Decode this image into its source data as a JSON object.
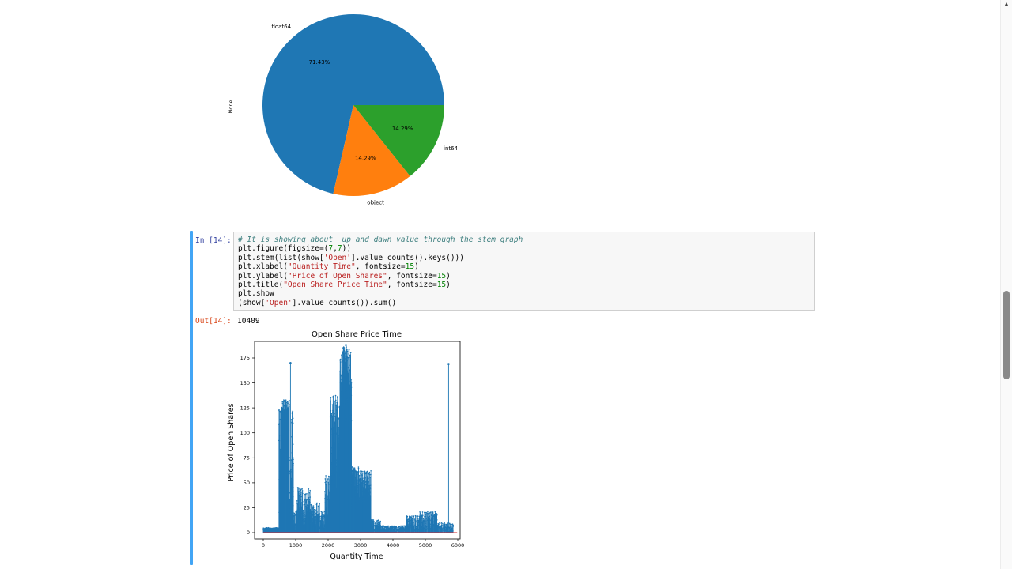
{
  "notebook": {
    "cell": {
      "prompt_in": "In [14]:",
      "prompt_out": "Out[14]:",
      "output_value": "10409"
    },
    "colors": {
      "selection_bar": "#42a5f5",
      "in_prompt": "#303f9f",
      "out_prompt": "#d84315",
      "comment": "#408080",
      "string": "#ba2121",
      "number": "#008000",
      "stem_blue": "#1f77b4",
      "baseline_red": "#d62728"
    },
    "scrollbar": {
      "up_arrow": "▲"
    }
  },
  "code_lines": [
    [
      {
        "t": "cm",
        "v": "# It is showing about  up and dawn value through the stem graph"
      }
    ],
    [
      {
        "t": "pl",
        "v": "plt.figure(figsize=("
      },
      {
        "t": "nu",
        "v": "7"
      },
      {
        "t": "pl",
        "v": ","
      },
      {
        "t": "nu",
        "v": "7"
      },
      {
        "t": "pl",
        "v": "))"
      }
    ],
    [
      {
        "t": "pl",
        "v": "plt.stem(list(show["
      },
      {
        "t": "st",
        "v": "'Open'"
      },
      {
        "t": "pl",
        "v": "].value_counts().keys()))"
      }
    ],
    [
      {
        "t": "pl",
        "v": "plt.xlabel("
      },
      {
        "t": "st",
        "v": "\"Quantity Time\""
      },
      {
        "t": "pl",
        "v": ", fontsize="
      },
      {
        "t": "nu",
        "v": "15"
      },
      {
        "t": "pl",
        "v": ")"
      }
    ],
    [
      {
        "t": "pl",
        "v": "plt.ylabel("
      },
      {
        "t": "st",
        "v": "\"Price of Open Shares\""
      },
      {
        "t": "pl",
        "v": ", fontsize="
      },
      {
        "t": "nu",
        "v": "15"
      },
      {
        "t": "pl",
        "v": ")"
      }
    ],
    [
      {
        "t": "pl",
        "v": "plt.title("
      },
      {
        "t": "st",
        "v": "\"Open Share Price Time\""
      },
      {
        "t": "pl",
        "v": ", fontsize="
      },
      {
        "t": "nu",
        "v": "15"
      },
      {
        "t": "pl",
        "v": ")"
      }
    ],
    [
      {
        "t": "pl",
        "v": "plt.show"
      }
    ],
    [
      {
        "t": "pl",
        "v": "(show["
      },
      {
        "t": "st",
        "v": "'Open'"
      },
      {
        "t": "pl",
        "v": "].value_counts()).sum()"
      }
    ]
  ],
  "chart_data": [
    {
      "type": "pie",
      "labels": [
        "float64",
        "object",
        "int64"
      ],
      "values": [
        71.43,
        14.29,
        14.29
      ],
      "pct_labels": [
        "71.43%",
        "14.29%",
        "14.29%"
      ],
      "colors": [
        "#1f77b4",
        "#ff7f0e",
        "#2ca02c"
      ],
      "ylabel": "None",
      "start_angle": 0,
      "counterclock": true,
      "legend": false
    },
    {
      "type": "stem",
      "title": "Open Share Price Time",
      "xlabel": "Quantity Time",
      "ylabel": "Price of Open Shares",
      "xticks": [
        0,
        1000,
        2000,
        3000,
        4000,
        5000,
        6000
      ],
      "yticks": [
        0,
        25,
        50,
        75,
        100,
        125,
        150,
        175
      ],
      "xlim": [
        -270,
        6075
      ],
      "ylim": [
        -9,
        191
      ],
      "stem_color": "#1f77b4",
      "baseline_color": "#d62728",
      "baseline_range": [
        0,
        5980
      ],
      "clusters": [
        [
          0,
          700,
          300,
          0.5,
          5
        ],
        [
          480,
          930,
          160,
          5,
          128
        ],
        [
          560,
          810,
          40,
          120,
          133
        ],
        [
          820,
          940,
          30,
          20,
          90
        ],
        [
          930,
          1900,
          280,
          1,
          22
        ],
        [
          1030,
          1450,
          110,
          6,
          46
        ],
        [
          1450,
          1750,
          60,
          3,
          30
        ],
        [
          1900,
          2120,
          70,
          4,
          58
        ],
        [
          2060,
          2360,
          170,
          25,
          138
        ],
        [
          2360,
          2720,
          280,
          55,
          184
        ],
        [
          2430,
          2660,
          140,
          110,
          188
        ],
        [
          2720,
          2960,
          140,
          22,
          66
        ],
        [
          2960,
          3320,
          160,
          28,
          62
        ],
        [
          3320,
          3620,
          90,
          1,
          13
        ],
        [
          3620,
          4420,
          230,
          0.5,
          7
        ],
        [
          4420,
          4820,
          120,
          2,
          17
        ],
        [
          4820,
          5360,
          170,
          3,
          21
        ],
        [
          5360,
          5860,
          110,
          1,
          10
        ]
      ],
      "spikes": [
        [
          838,
          170
        ],
        [
          2548,
          188
        ],
        [
          5716,
          169
        ]
      ]
    }
  ]
}
